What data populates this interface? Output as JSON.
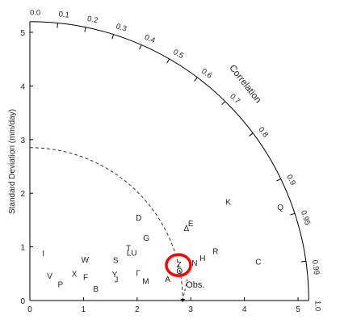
{
  "chart_data": {
    "type": "scatter",
    "subtype": "taylor-diagram",
    "title": "",
    "ylabel": "Standard Deviation (mm/day)",
    "arc_label": "Correlation",
    "xlim": [
      0,
      5.2
    ],
    "ylim": [
      0,
      5.2
    ],
    "x_ticks": [
      "0",
      "1",
      "2",
      "3",
      "4",
      "5"
    ],
    "y_ticks": [
      "0",
      "1",
      "2",
      "3",
      "4",
      "5"
    ],
    "correlation_ticks": [
      {
        "value": 0.0,
        "label": "0.0"
      },
      {
        "value": 0.1,
        "label": "0.1"
      },
      {
        "value": 0.2,
        "label": "0.2"
      },
      {
        "value": 0.3,
        "label": "0.3"
      },
      {
        "value": 0.4,
        "label": "0.4"
      },
      {
        "value": 0.5,
        "label": "0.5"
      },
      {
        "value": 0.6,
        "label": "0.6"
      },
      {
        "value": 0.7,
        "label": "0.7"
      },
      {
        "value": 0.8,
        "label": "0.8"
      },
      {
        "value": 0.9,
        "label": "0.9"
      },
      {
        "value": 0.95,
        "label": "0.95"
      },
      {
        "value": 0.99,
        "label": "0.99"
      },
      {
        "value": 1.0,
        "label": "1.0"
      }
    ],
    "reference": {
      "label": "Obs.",
      "std": 2.85
    },
    "points": [
      {
        "label": "I",
        "x": 0.25,
        "y": 0.88
      },
      {
        "label": "V",
        "x": 0.37,
        "y": 0.46
      },
      {
        "label": "P",
        "x": 0.57,
        "y": 0.3
      },
      {
        "label": "X",
        "x": 0.83,
        "y": 0.5
      },
      {
        "label": "W",
        "x": 1.03,
        "y": 0.76
      },
      {
        "label": "F",
        "x": 1.04,
        "y": 0.44
      },
      {
        "label": "B",
        "x": 1.23,
        "y": 0.22
      },
      {
        "label": "S",
        "x": 1.6,
        "y": 0.75
      },
      {
        "label": "Y",
        "x": 1.58,
        "y": 0.49
      },
      {
        "label": "J",
        "x": 1.61,
        "y": 0.39
      },
      {
        "label": "T",
        "x": 1.84,
        "y": 0.98
      },
      {
        "label": "LU",
        "x": 1.9,
        "y": 0.89
      },
      {
        "label": "D",
        "x": 2.03,
        "y": 1.54
      },
      {
        "label": "G",
        "x": 2.17,
        "y": 1.17
      },
      {
        "label": "Γ",
        "x": 2.02,
        "y": 0.51
      },
      {
        "label": "M",
        "x": 2.16,
        "y": 0.36
      },
      {
        "label": "A",
        "x": 2.57,
        "y": 0.4
      },
      {
        "label": "E",
        "x": 3.0,
        "y": 1.44
      },
      {
        "label": "Δ",
        "x": 2.92,
        "y": 1.35
      },
      {
        "label": "Z",
        "x": 2.78,
        "y": 0.67
      },
      {
        "label": "Θ",
        "x": 2.79,
        "y": 0.55
      },
      {
        "label": "N",
        "x": 3.07,
        "y": 0.7
      },
      {
        "label": "H",
        "x": 3.22,
        "y": 0.79
      },
      {
        "label": "R",
        "x": 3.46,
        "y": 0.92
      },
      {
        "label": "K",
        "x": 3.7,
        "y": 1.84
      },
      {
        "label": "Q",
        "x": 4.67,
        "y": 1.74
      },
      {
        "label": "C",
        "x": 4.26,
        "y": 0.72
      }
    ],
    "highlight": {
      "label": "Z",
      "x": 2.77,
      "y": 0.66,
      "color": "#ff0000"
    },
    "colors": {
      "axis": "#000000",
      "text": "#222222",
      "highlight": "#ff0000"
    }
  }
}
